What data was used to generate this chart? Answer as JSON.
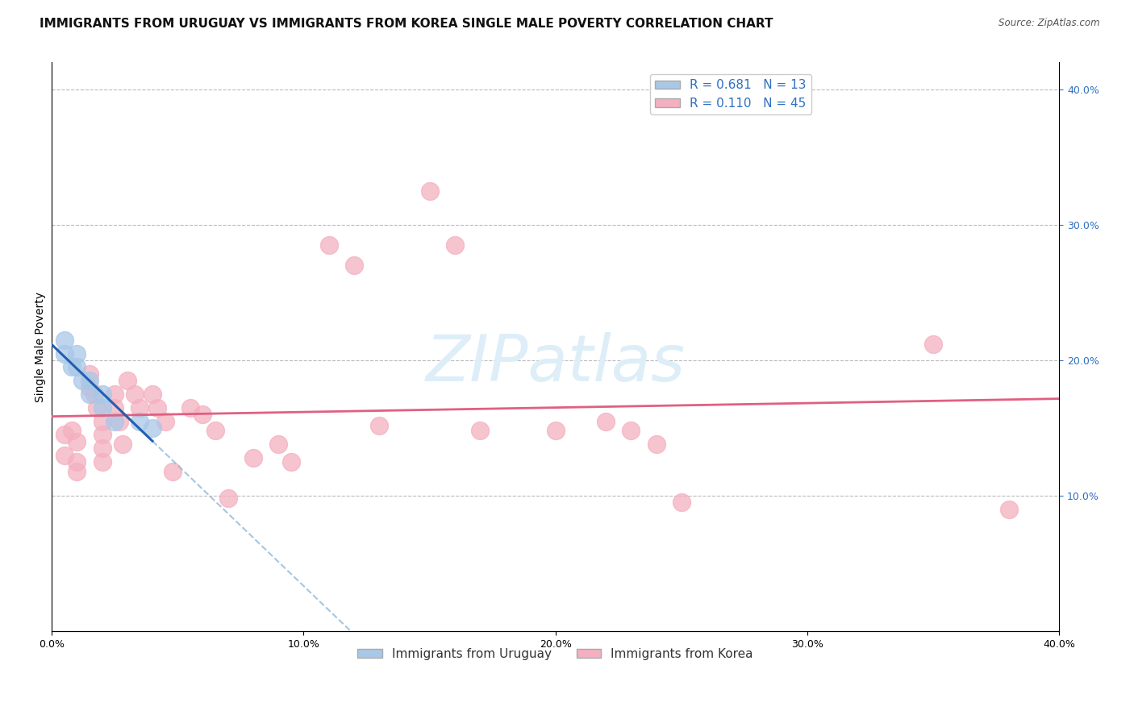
{
  "title": "IMMIGRANTS FROM URUGUAY VS IMMIGRANTS FROM KOREA SINGLE MALE POVERTY CORRELATION CHART",
  "source": "Source: ZipAtlas.com",
  "ylabel": "Single Male Poverty",
  "xlim": [
    0.0,
    0.4
  ],
  "ylim": [
    0.0,
    0.42
  ],
  "x_ticks": [
    0.0,
    0.1,
    0.2,
    0.3,
    0.4
  ],
  "x_tick_labels": [
    "0.0%",
    "10.0%",
    "20.0%",
    "30.0%",
    "40.0%"
  ],
  "y_ticks_right": [
    0.1,
    0.2,
    0.3,
    0.4
  ],
  "y_tick_labels_right": [
    "10.0%",
    "20.0%",
    "30.0%",
    "40.0%"
  ],
  "uruguay_points": [
    [
      0.005,
      0.215
    ],
    [
      0.005,
      0.205
    ],
    [
      0.008,
      0.195
    ],
    [
      0.01,
      0.205
    ],
    [
      0.01,
      0.195
    ],
    [
      0.012,
      0.185
    ],
    [
      0.015,
      0.185
    ],
    [
      0.015,
      0.175
    ],
    [
      0.02,
      0.175
    ],
    [
      0.02,
      0.165
    ],
    [
      0.025,
      0.155
    ],
    [
      0.035,
      0.155
    ],
    [
      0.04,
      0.15
    ]
  ],
  "korea_points": [
    [
      0.005,
      0.145
    ],
    [
      0.005,
      0.13
    ],
    [
      0.008,
      0.148
    ],
    [
      0.01,
      0.14
    ],
    [
      0.01,
      0.125
    ],
    [
      0.01,
      0.118
    ],
    [
      0.015,
      0.19
    ],
    [
      0.015,
      0.18
    ],
    [
      0.017,
      0.175
    ],
    [
      0.018,
      0.165
    ],
    [
      0.02,
      0.155
    ],
    [
      0.02,
      0.145
    ],
    [
      0.02,
      0.135
    ],
    [
      0.02,
      0.125
    ],
    [
      0.025,
      0.175
    ],
    [
      0.025,
      0.165
    ],
    [
      0.027,
      0.155
    ],
    [
      0.028,
      0.138
    ],
    [
      0.03,
      0.185
    ],
    [
      0.033,
      0.175
    ],
    [
      0.035,
      0.165
    ],
    [
      0.04,
      0.175
    ],
    [
      0.042,
      0.165
    ],
    [
      0.045,
      0.155
    ],
    [
      0.048,
      0.118
    ],
    [
      0.055,
      0.165
    ],
    [
      0.06,
      0.16
    ],
    [
      0.065,
      0.148
    ],
    [
      0.07,
      0.098
    ],
    [
      0.08,
      0.128
    ],
    [
      0.09,
      0.138
    ],
    [
      0.095,
      0.125
    ],
    [
      0.11,
      0.285
    ],
    [
      0.12,
      0.27
    ],
    [
      0.13,
      0.152
    ],
    [
      0.15,
      0.325
    ],
    [
      0.16,
      0.285
    ],
    [
      0.17,
      0.148
    ],
    [
      0.2,
      0.148
    ],
    [
      0.22,
      0.155
    ],
    [
      0.23,
      0.148
    ],
    [
      0.24,
      0.138
    ],
    [
      0.25,
      0.095
    ],
    [
      0.35,
      0.212
    ],
    [
      0.38,
      0.09
    ]
  ],
  "uruguay_color": "#a8c8e8",
  "korea_color": "#f4b0c0",
  "uruguay_line_color": "#2060b0",
  "korea_line_color": "#e06080",
  "background_color": "#ffffff",
  "grid_color": "#bbbbbb",
  "watermark_color": "#ddeef8",
  "title_fontsize": 11,
  "axis_label_fontsize": 10,
  "tick_fontsize": 9,
  "legend_fontsize": 11
}
